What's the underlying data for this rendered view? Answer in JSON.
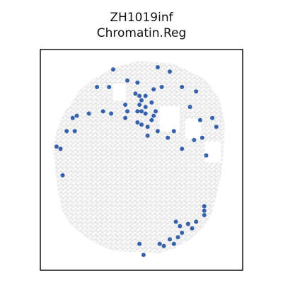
{
  "chart_data": {
    "type": "scatter",
    "title": "ZH1019inf",
    "subtitle": "Chromatin.Reg",
    "xlabel": "",
    "ylabel": "",
    "axis_ticks": "none",
    "colors": {
      "background_spot": "#ebebeb",
      "highlight_spot": "#3562ab",
      "frame": "#111111"
    },
    "highlight_spots": [
      [
        0.36,
        0.91
      ],
      [
        0.58,
        0.92
      ],
      [
        0.64,
        0.9
      ],
      [
        0.43,
        0.86
      ],
      [
        0.48,
        0.85
      ],
      [
        0.28,
        0.83
      ],
      [
        0.34,
        0.83
      ],
      [
        0.6,
        0.83
      ],
      [
        0.7,
        0.83
      ],
      [
        0.56,
        0.82
      ],
      [
        0.77,
        0.81
      ],
      [
        0.47,
        0.8
      ],
      [
        0.49,
        0.79
      ],
      [
        0.52,
        0.79
      ],
      [
        0.5,
        0.77
      ],
      [
        0.49,
        0.75
      ],
      [
        0.52,
        0.74
      ],
      [
        0.55,
        0.76
      ],
      [
        0.42,
        0.75
      ],
      [
        0.74,
        0.74
      ],
      [
        0.48,
        0.72
      ],
      [
        0.5,
        0.72
      ],
      [
        0.52,
        0.71
      ],
      [
        0.57,
        0.72
      ],
      [
        0.56,
        0.7
      ],
      [
        0.31,
        0.72
      ],
      [
        0.35,
        0.71
      ],
      [
        0.43,
        0.72
      ],
      [
        0.24,
        0.71
      ],
      [
        0.18,
        0.7
      ],
      [
        0.16,
        0.69
      ],
      [
        0.42,
        0.69
      ],
      [
        0.79,
        0.68
      ],
      [
        0.48,
        0.67
      ],
      [
        0.5,
        0.66
      ],
      [
        0.55,
        0.68
      ],
      [
        0.53,
        0.65
      ],
      [
        0.66,
        0.63
      ],
      [
        0.13,
        0.63
      ],
      [
        0.17,
        0.63
      ],
      [
        0.58,
        0.63
      ],
      [
        0.87,
        0.65
      ],
      [
        0.85,
        0.69
      ],
      [
        0.53,
        0.61
      ],
      [
        0.63,
        0.6
      ],
      [
        0.8,
        0.6
      ],
      [
        0.76,
        0.59
      ],
      [
        0.1,
        0.55
      ],
      [
        0.08,
        0.56
      ],
      [
        0.7,
        0.55
      ],
      [
        0.82,
        0.52
      ],
      [
        0.11,
        0.43
      ],
      [
        0.81,
        0.29
      ],
      [
        0.81,
        0.27
      ],
      [
        0.81,
        0.25
      ],
      [
        0.77,
        0.22
      ],
      [
        0.73,
        0.21
      ],
      [
        0.69,
        0.2
      ],
      [
        0.67,
        0.22
      ],
      [
        0.75,
        0.19
      ],
      [
        0.7,
        0.17
      ],
      [
        0.68,
        0.15
      ],
      [
        0.64,
        0.14
      ],
      [
        0.66,
        0.12
      ],
      [
        0.59,
        0.12
      ],
      [
        0.61,
        0.11
      ],
      [
        0.49,
        0.12
      ],
      [
        0.51,
        0.07
      ]
    ]
  }
}
